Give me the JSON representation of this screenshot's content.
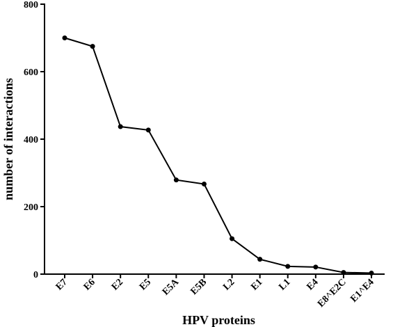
{
  "chart_data": {
    "type": "line",
    "title": "",
    "xlabel": "HPV proteins",
    "ylabel": "number of interactions",
    "categories": [
      "E7",
      "E6",
      "E2",
      "E5",
      "E5A",
      "E5B",
      "L2",
      "E1",
      "L1",
      "E4",
      "E8^E2C",
      "E1^E4"
    ],
    "series": [
      {
        "values": [
          700,
          675,
          437,
          427,
          279,
          267,
          105,
          44,
          23,
          21,
          5,
          3
        ]
      }
    ],
    "ylim": [
      0,
      800
    ],
    "yticks": [
      0,
      200,
      400,
      600,
      800
    ],
    "grid": false,
    "legend": "none",
    "colors": {
      "line": "#000000",
      "marker": "#000000"
    }
  }
}
